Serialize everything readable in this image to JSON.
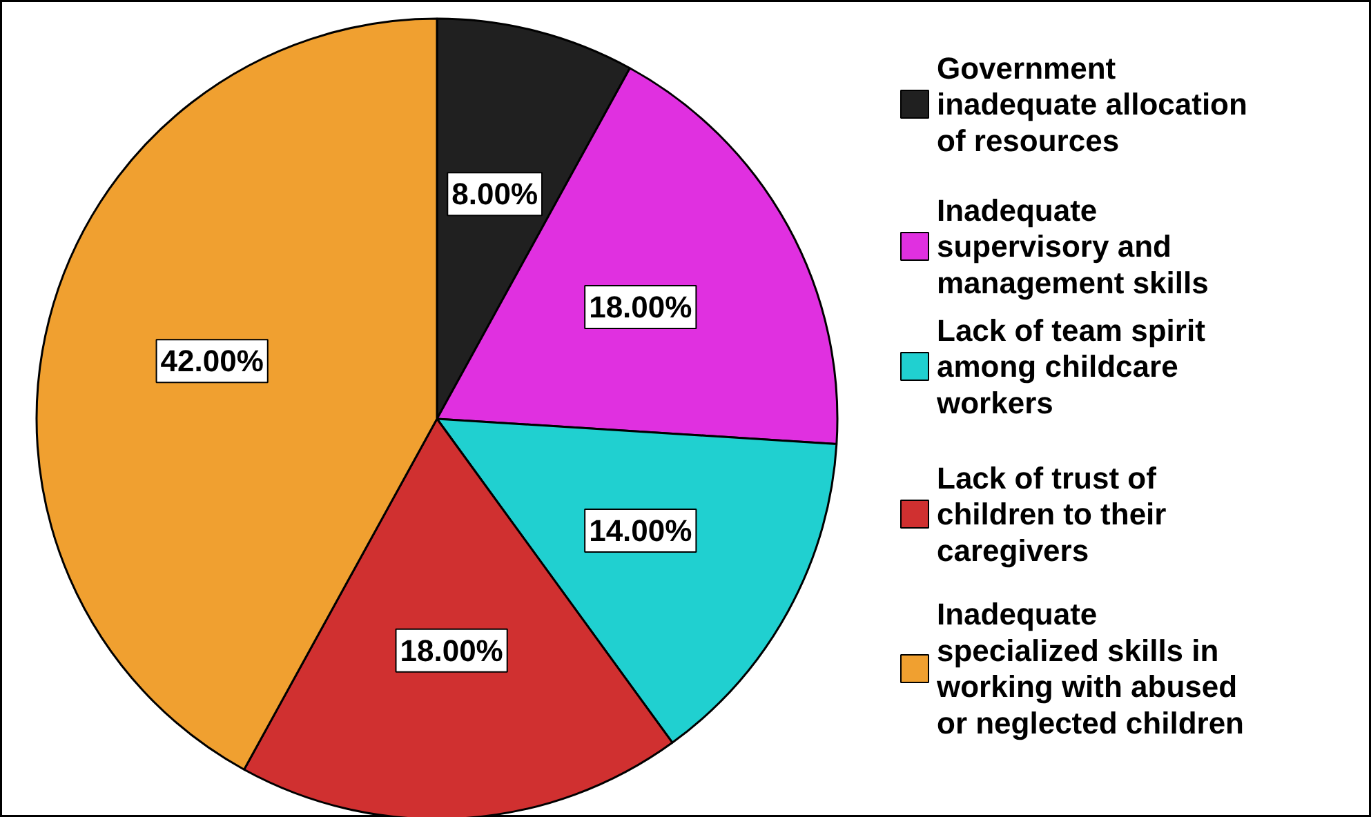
{
  "chart_data": {
    "type": "pie",
    "categories": [
      "Government\ninadequate allocation\nof resources",
      "Inadequate\nsupervisory and\nmanagement skills",
      "Lack of team spirit\namong childcare\nworkers",
      "Lack of trust of\nchildren to their\ncaregivers",
      "Inadequate\nspecialized skills in\nworking with abused\nor neglected children"
    ],
    "values": [
      8,
      18,
      14,
      18,
      42
    ],
    "colors": [
      "#202020",
      "#e030e0",
      "#20d0d0",
      "#d03030",
      "#f0a030"
    ],
    "value_labels": [
      "8.00%",
      "18.00%",
      "14.00%",
      "18.00%",
      "42.00%"
    ],
    "legend": "right"
  }
}
